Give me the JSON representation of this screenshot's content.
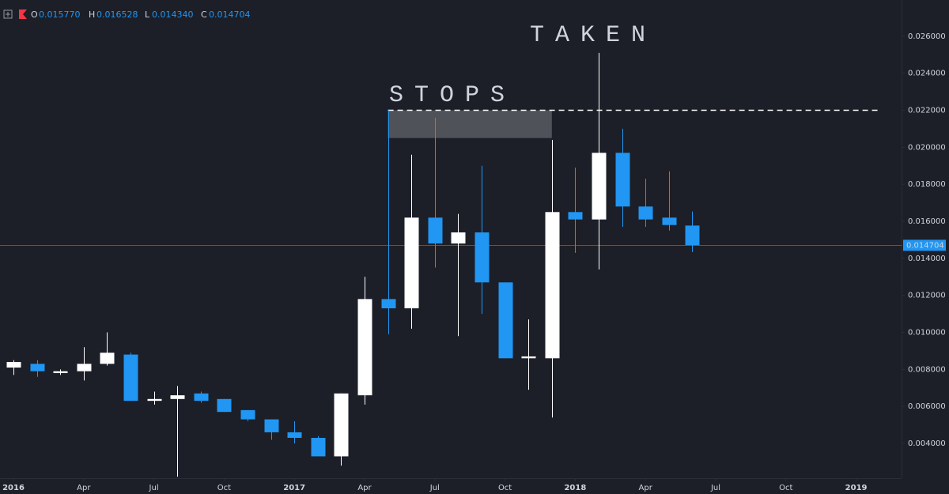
{
  "header": {
    "items": [
      {
        "letter": "O",
        "value": "0.015770"
      },
      {
        "letter": "H",
        "value": "0.016528"
      },
      {
        "letter": "L",
        "value": "0.014340"
      },
      {
        "letter": "C",
        "value": "0.014704"
      }
    ]
  },
  "chart_data": {
    "type": "candlestick",
    "x": [
      "2016-01",
      "2016-02",
      "2016-03",
      "2016-04",
      "2016-05",
      "2016-06",
      "2016-07",
      "2016-08",
      "2016-09",
      "2016-10",
      "2016-11",
      "2016-12",
      "2017-01",
      "2017-02",
      "2017-03",
      "2017-04",
      "2017-05",
      "2017-06",
      "2017-07",
      "2017-08",
      "2017-09",
      "2017-10",
      "2017-11",
      "2017-12",
      "2018-01",
      "2018-02",
      "2018-03",
      "2018-04",
      "2018-05",
      "2018-06"
    ],
    "open": [
      0.0081,
      0.0083,
      0.0078,
      0.0079,
      0.0083,
      0.0088,
      0.0063,
      0.0064,
      0.0067,
      0.0064,
      0.0058,
      0.0053,
      0.0046,
      0.0043,
      0.0033,
      0.0066,
      0.0118,
      0.0113,
      0.0162,
      0.0148,
      0.0154,
      0.0127,
      0.0086,
      0.0086,
      0.0165,
      0.0161,
      0.0197,
      0.0168,
      0.0162,
      0.01577
    ],
    "high": [
      0.0085,
      0.0085,
      0.008,
      0.0092,
      0.01,
      0.0089,
      0.0068,
      0.0071,
      0.0068,
      0.0064,
      0.0058,
      0.0053,
      0.0052,
      0.0044,
      0.0067,
      0.013,
      0.022,
      0.0196,
      0.0216,
      0.0164,
      0.019,
      0.0127,
      0.0107,
      0.0204,
      0.0189,
      0.0251,
      0.021,
      0.0183,
      0.0187,
      0.016528
    ],
    "low": [
      0.0077,
      0.0076,
      0.0077,
      0.0074,
      0.0082,
      0.0063,
      0.0061,
      0.0022,
      0.0062,
      0.0057,
      0.0052,
      0.0042,
      0.004,
      0.0033,
      0.0028,
      0.0061,
      0.0099,
      0.0102,
      0.0135,
      0.0098,
      0.011,
      0.0086,
      0.0069,
      0.0054,
      0.0143,
      0.0134,
      0.0157,
      0.0157,
      0.0155,
      0.01434
    ],
    "close": [
      0.0084,
      0.0079,
      0.0079,
      0.0083,
      0.0089,
      0.0063,
      0.0064,
      0.0066,
      0.0063,
      0.0057,
      0.0053,
      0.0046,
      0.0043,
      0.0033,
      0.0067,
      0.0118,
      0.0113,
      0.0162,
      0.0148,
      0.0154,
      0.0127,
      0.0086,
      0.0087,
      0.0165,
      0.0161,
      0.0197,
      0.0168,
      0.0161,
      0.0158,
      0.014704
    ],
    "up_color": "#ffffff",
    "down_color": "#2196f3",
    "xlim": [
      "2015-12",
      "2019-02"
    ],
    "xticks": [
      {
        "value": "2016-01",
        "label": "2016"
      },
      {
        "value": "2016-04",
        "label": "Apr"
      },
      {
        "value": "2016-07",
        "label": "Jul"
      },
      {
        "value": "2016-10",
        "label": "Oct"
      },
      {
        "value": "2017-01",
        "label": "2017"
      },
      {
        "value": "2017-04",
        "label": "Apr"
      },
      {
        "value": "2017-07",
        "label": "Jul"
      },
      {
        "value": "2017-10",
        "label": "Oct"
      },
      {
        "value": "2018-01",
        "label": "2018"
      },
      {
        "value": "2018-04",
        "label": "Apr"
      },
      {
        "value": "2018-07",
        "label": "Jul"
      },
      {
        "value": "2018-10",
        "label": "Oct"
      },
      {
        "value": "2019-01",
        "label": "2019"
      }
    ],
    "ylim": [
      0.0021,
      0.028
    ],
    "yticks": [
      {
        "value": 0.004,
        "label": "0.004000"
      },
      {
        "value": 0.006,
        "label": "0.006000"
      },
      {
        "value": 0.008,
        "label": "0.008000"
      },
      {
        "value": 0.01,
        "label": "0.010000"
      },
      {
        "value": 0.012,
        "label": "0.012000"
      },
      {
        "value": 0.014,
        "label": "0.014000"
      },
      {
        "value": 0.016,
        "label": "0.016000"
      },
      {
        "value": 0.018,
        "label": "0.018000"
      },
      {
        "value": 0.02,
        "label": "0.020000"
      },
      {
        "value": 0.022,
        "label": "0.022000"
      },
      {
        "value": 0.024,
        "label": "0.024000"
      },
      {
        "value": 0.026,
        "label": "0.026000"
      }
    ],
    "last_price": {
      "value": 0.014704,
      "label": "0.014704",
      "color": "#2196f3"
    },
    "annotations": [
      {
        "text": "STOPS",
        "color": "#ffffff"
      },
      {
        "text": "TAKEN",
        "color": "#e8622c"
      }
    ],
    "zone": {
      "x": [
        "2017-05",
        "2017-12"
      ],
      "y": [
        0.0205,
        0.022
      ],
      "color": "#55585e"
    },
    "level": {
      "value": 0.022,
      "x": [
        "2017-05",
        "2019-01"
      ],
      "color": "#ffffff"
    }
  }
}
